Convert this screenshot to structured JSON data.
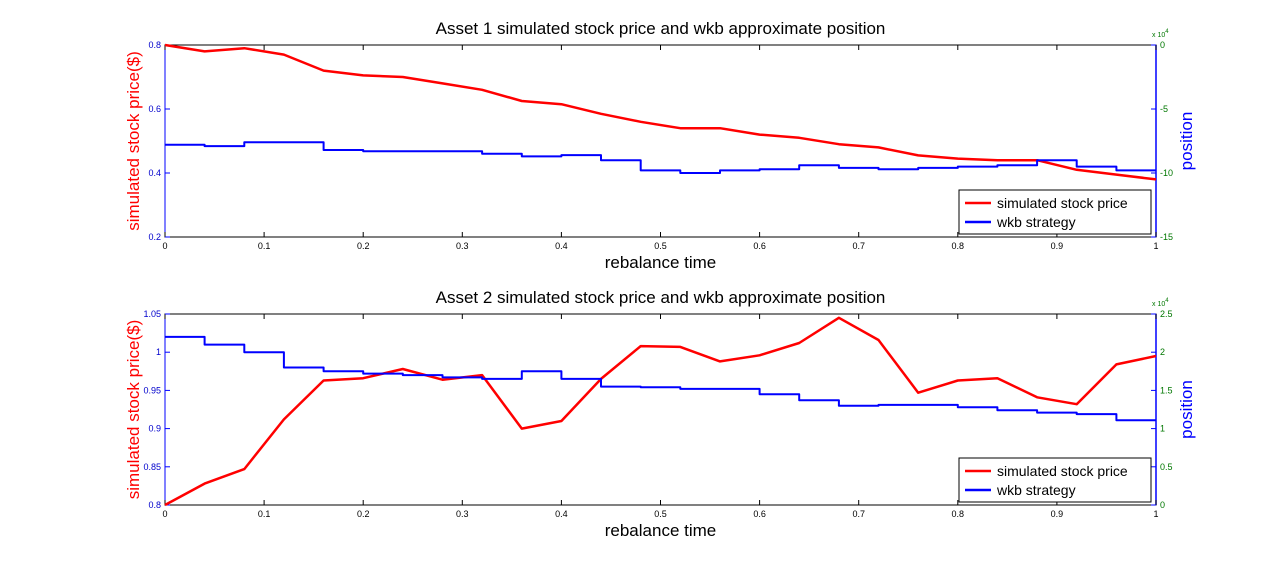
{
  "chart_data": [
    {
      "type": "line",
      "title": "Asset 1 simulated stock price and wkb approximate position",
      "xlabel": "rebalance time",
      "ylabel_left": "simulated stock price($)",
      "ylabel_right": "position",
      "xlim": [
        0,
        1
      ],
      "ylim_left": [
        0.2,
        0.8
      ],
      "ylim_right": [
        -15,
        0
      ],
      "x_ticks": [
        "0",
        "0.1",
        "0.2",
        "0.3",
        "0.4",
        "0.5",
        "0.6",
        "0.7",
        "0.8",
        "0.9",
        "1"
      ],
      "y_ticks_left": [
        "0.2",
        "0.4",
        "0.6",
        "0.8"
      ],
      "y_ticks_right": [
        "-15",
        "-10",
        "-5",
        "0"
      ],
      "y_right_multiplier": "x 10",
      "y_right_exponent": "4",
      "legend_position": "bottom-right",
      "grid": false,
      "x": [
        0,
        0.04,
        0.08,
        0.12,
        0.16,
        0.2,
        0.24,
        0.28,
        0.32,
        0.36,
        0.4,
        0.44,
        0.48,
        0.52,
        0.56,
        0.6,
        0.64,
        0.68,
        0.72,
        0.76,
        0.8,
        0.84,
        0.88,
        0.92,
        0.96,
        1.0
      ],
      "series": [
        {
          "name": "simulated stock price",
          "color": "#ff0000",
          "style": "line",
          "axis": "left",
          "values": [
            0.8,
            0.78,
            0.79,
            0.77,
            0.72,
            0.705,
            0.7,
            0.68,
            0.66,
            0.625,
            0.615,
            0.585,
            0.56,
            0.54,
            0.54,
            0.52,
            0.51,
            0.49,
            0.48,
            0.455,
            0.445,
            0.44,
            0.44,
            0.41,
            0.395,
            0.38
          ]
        },
        {
          "name": "wkb strategy",
          "color": "#0000ff",
          "style": "step",
          "axis": "right",
          "values": [
            -7.8,
            -7.9,
            -7.6,
            -7.6,
            -8.2,
            -8.3,
            -8.3,
            -8.3,
            -8.5,
            -8.7,
            -8.6,
            -9.0,
            -9.8,
            -10.0,
            -9.8,
            -9.7,
            -9.4,
            -9.6,
            -9.7,
            -9.6,
            -9.5,
            -9.4,
            -9.0,
            -9.5,
            -9.8,
            -9.8
          ]
        }
      ]
    },
    {
      "type": "line",
      "title": "Asset 2 simulated stock price and wkb approximate position",
      "xlabel": "rebalance time",
      "ylabel_left": "simulated stock price($)",
      "ylabel_right": "position",
      "xlim": [
        0,
        1
      ],
      "ylim_left": [
        0.8,
        1.05
      ],
      "ylim_right": [
        0,
        2.5
      ],
      "x_ticks": [
        "0",
        "0.1",
        "0.2",
        "0.3",
        "0.4",
        "0.5",
        "0.6",
        "0.7",
        "0.8",
        "0.9",
        "1"
      ],
      "y_ticks_left": [
        "0.8",
        "0.85",
        "0.9",
        "0.95",
        "1",
        "1.05"
      ],
      "y_ticks_right": [
        "0",
        "0.5",
        "1",
        "1.5",
        "2",
        "2.5"
      ],
      "y_right_multiplier": "x 10",
      "y_right_exponent": "4",
      "legend_position": "bottom-right",
      "grid": false,
      "x": [
        0,
        0.04,
        0.08,
        0.12,
        0.16,
        0.2,
        0.24,
        0.28,
        0.32,
        0.36,
        0.4,
        0.44,
        0.48,
        0.52,
        0.56,
        0.6,
        0.64,
        0.68,
        0.72,
        0.76,
        0.8,
        0.84,
        0.88,
        0.92,
        0.96,
        1.0
      ],
      "series": [
        {
          "name": "simulated stock price",
          "color": "#ff0000",
          "style": "line",
          "axis": "left",
          "values": [
            0.8,
            0.828,
            0.847,
            0.912,
            0.963,
            0.966,
            0.978,
            0.964,
            0.97,
            0.9,
            0.91,
            0.965,
            1.008,
            1.007,
            0.988,
            0.996,
            1.012,
            1.045,
            1.016,
            0.947,
            0.963,
            0.966,
            0.941,
            0.932,
            0.984,
            0.995
          ]
        },
        {
          "name": "wkb strategy",
          "color": "#0000ff",
          "style": "step",
          "axis": "right",
          "values": [
            2.2,
            2.1,
            2.0,
            1.8,
            1.75,
            1.72,
            1.7,
            1.67,
            1.65,
            1.75,
            1.65,
            1.55,
            1.54,
            1.52,
            1.52,
            1.45,
            1.37,
            1.3,
            1.31,
            1.31,
            1.28,
            1.24,
            1.21,
            1.19,
            1.11,
            1.11
          ]
        }
      ]
    }
  ]
}
